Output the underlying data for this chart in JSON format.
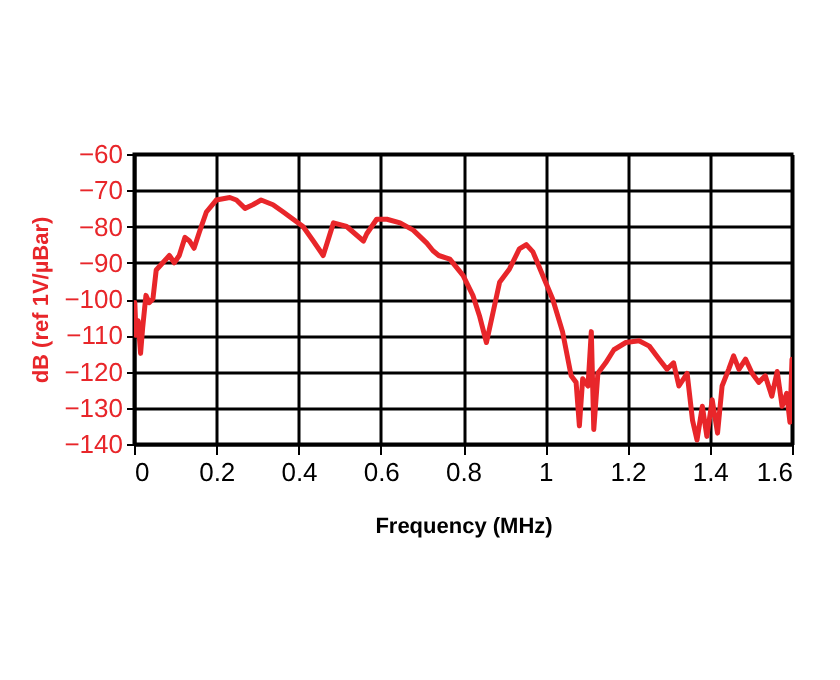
{
  "chart_data": {
    "type": "line",
    "xlabel": "Frequency (MHz)",
    "ylabel": "dB (ref 1V/µBar)",
    "xlim": [
      0,
      1.6
    ],
    "xticks": [
      0,
      0.2,
      0.4,
      0.6,
      0.8,
      1,
      1.2,
      1.4,
      1.6
    ],
    "ylim": [
      -140,
      -60
    ],
    "yticks": [
      -140,
      -130,
      -120,
      -110,
      -100,
      -90,
      -80,
      -70,
      -60
    ],
    "grid": true,
    "marker": "none",
    "line_style": "solid",
    "x": [
      0.002,
      0.005,
      0.01,
      0.016,
      0.021,
      0.029,
      0.037,
      0.046,
      0.054,
      0.07,
      0.086,
      0.098,
      0.11,
      0.124,
      0.135,
      0.146,
      0.159,
      0.176,
      0.2,
      0.233,
      0.249,
      0.27,
      0.289,
      0.309,
      0.338,
      0.363,
      0.387,
      0.411,
      0.436,
      0.46,
      0.485,
      0.517,
      0.558,
      0.566,
      0.59,
      0.615,
      0.647,
      0.679,
      0.712,
      0.727,
      0.741,
      0.768,
      0.8,
      0.824,
      0.84,
      0.857,
      0.873,
      0.889,
      0.913,
      0.937,
      0.954,
      0.97,
      0.994,
      1.018,
      1.042,
      1.063,
      1.075,
      1.083,
      1.091,
      1.104,
      1.112,
      1.118,
      1.128,
      1.147,
      1.167,
      1.196,
      1.228,
      1.253,
      1.277,
      1.296,
      1.312,
      1.325,
      1.345,
      1.358,
      1.369,
      1.382,
      1.393,
      1.406,
      1.419,
      1.43,
      1.446,
      1.458,
      1.471,
      1.487,
      1.503,
      1.519,
      1.535,
      1.551,
      1.564,
      1.576,
      1.587,
      1.595,
      1.6
    ],
    "series": [
      {
        "color": "#e8262a",
        "values": [
          -101,
          -110,
          -106,
          -115,
          -108,
          -99,
          -101,
          -100,
          -92,
          -90,
          -88,
          -90,
          -88,
          -83,
          -84,
          -86,
          -81.5,
          -76,
          -72.7,
          -72,
          -72.7,
          -75,
          -74,
          -72.7,
          -74,
          -76,
          -78,
          -80,
          -84,
          -88,
          -79,
          -80,
          -84,
          -82,
          -78,
          -78,
          -79,
          -81,
          -84.6,
          -86.7,
          -88,
          -89,
          -93.5,
          -99,
          -104.6,
          -112,
          -103.7,
          -95.4,
          -91.7,
          -86.2,
          -85,
          -87,
          -93.5,
          -100,
          -109,
          -121.2,
          -123,
          -135,
          -122,
          -124,
          -109,
          -136,
          -120.5,
          -117.6,
          -114,
          -112,
          -111.5,
          -113,
          -116.6,
          -119.4,
          -117.6,
          -124,
          -120.5,
          -133.4,
          -138.9,
          -129.6,
          -137.9,
          -127.8,
          -137,
          -124,
          -119.4,
          -115.7,
          -119.4,
          -116.6,
          -120.5,
          -123,
          -121.2,
          -126.8,
          -120,
          -129.6,
          -126,
          -134,
          -116.6
        ]
      }
    ]
  }
}
